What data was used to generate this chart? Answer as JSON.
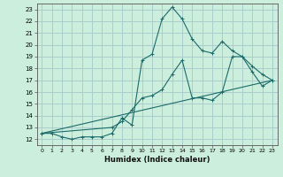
{
  "xlabel": "Humidex (Indice chaleur)",
  "bg_color": "#cceedd",
  "grid_color": "#aacccc",
  "line_color": "#1a6b6b",
  "xlim": [
    -0.5,
    23.5
  ],
  "ylim": [
    11.5,
    23.5
  ],
  "xticks": [
    0,
    1,
    2,
    3,
    4,
    5,
    6,
    7,
    8,
    9,
    10,
    11,
    12,
    13,
    14,
    15,
    16,
    17,
    18,
    19,
    20,
    21,
    22,
    23
  ],
  "yticks": [
    12,
    13,
    14,
    15,
    16,
    17,
    18,
    19,
    20,
    21,
    22,
    23
  ],
  "line1_x": [
    0,
    1,
    2,
    3,
    4,
    5,
    6,
    7,
    8,
    9,
    10,
    11,
    12,
    13,
    14,
    15,
    16,
    17,
    18,
    19,
    20,
    21,
    22,
    23
  ],
  "line1_y": [
    12.5,
    12.5,
    12.2,
    12.0,
    12.2,
    12.2,
    12.2,
    12.5,
    13.8,
    13.2,
    18.7,
    19.2,
    22.2,
    23.2,
    22.2,
    20.5,
    19.5,
    19.3,
    20.3,
    19.5,
    19.0,
    18.2,
    17.5,
    17.0
  ],
  "line2_x": [
    0,
    7,
    8,
    9,
    10,
    11,
    12,
    13,
    14,
    15,
    16,
    17,
    18,
    19,
    20,
    21,
    22,
    23
  ],
  "line2_y": [
    12.5,
    13.0,
    13.5,
    14.5,
    15.5,
    15.7,
    16.2,
    17.5,
    18.7,
    15.5,
    15.5,
    15.3,
    16.0,
    19.0,
    19.0,
    17.7,
    16.5,
    17.0
  ],
  "line3_x": [
    0,
    23
  ],
  "line3_y": [
    12.5,
    17.0
  ]
}
